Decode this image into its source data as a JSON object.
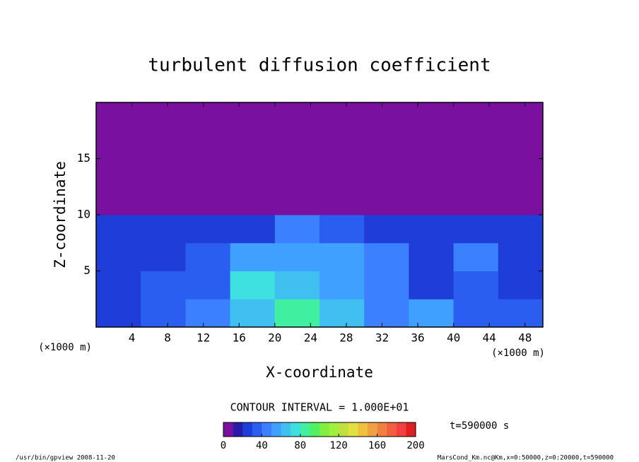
{
  "chart_data": {
    "type": "contour",
    "title": "turbulent diffusion coefficient",
    "x_label": "X-coordinate",
    "y_label": "Z-coordinate",
    "x_unit": "(×1000 m)",
    "y_unit": "(×1000 m)",
    "xlim": [
      0,
      50
    ],
    "ylim": [
      0,
      20
    ],
    "xticks": [
      4,
      8,
      12,
      16,
      20,
      24,
      28,
      32,
      36,
      40,
      44,
      48
    ],
    "yticks": [
      5,
      10,
      15
    ],
    "z": [
      [
        20,
        30,
        40,
        60,
        80,
        60,
        40,
        50,
        30,
        30
      ],
      [
        20,
        30,
        30,
        70,
        60,
        50,
        40,
        20,
        30,
        20
      ],
      [
        20,
        20,
        30,
        50,
        50,
        50,
        40,
        20,
        40,
        20
      ],
      [
        20,
        20,
        20,
        20,
        40,
        30,
        20,
        20,
        20,
        20
      ],
      [
        0,
        0,
        0,
        0,
        0,
        0,
        0,
        0,
        0,
        0
      ],
      [
        0,
        0,
        0,
        0,
        0,
        0,
        0,
        0,
        0,
        0
      ],
      [
        0,
        0,
        0,
        0,
        0,
        0,
        0,
        0,
        0,
        0
      ],
      [
        0,
        0,
        0,
        0,
        0,
        0,
        0,
        0,
        0,
        0
      ]
    ],
    "contour_interval": "CONTOUR INTERVAL = 1.000E+01",
    "colorbar": {
      "lim": [
        0,
        200
      ],
      "ticks": [
        0,
        40,
        80,
        120,
        160,
        200
      ],
      "step": 10,
      "colors": [
        "#7a10a0",
        "#2a1aa8",
        "#1f3dd8",
        "#2a5ef0",
        "#3a80ff",
        "#3fa0ff",
        "#3fc0f0",
        "#3fe0e0",
        "#40f0a0",
        "#50f060",
        "#80f040",
        "#a0f040",
        "#c0e040",
        "#e0e040",
        "#f0c040",
        "#f0a040",
        "#f08040",
        "#f06040",
        "#f04040",
        "#e02020"
      ]
    },
    "time_label": "t=590000 s",
    "footer_left": "/usr/bin/gpview  2008-11-20",
    "footer_right": "MarsCond_Km.nc@Km,x=0:50000,z=0:20000,t=590000"
  }
}
